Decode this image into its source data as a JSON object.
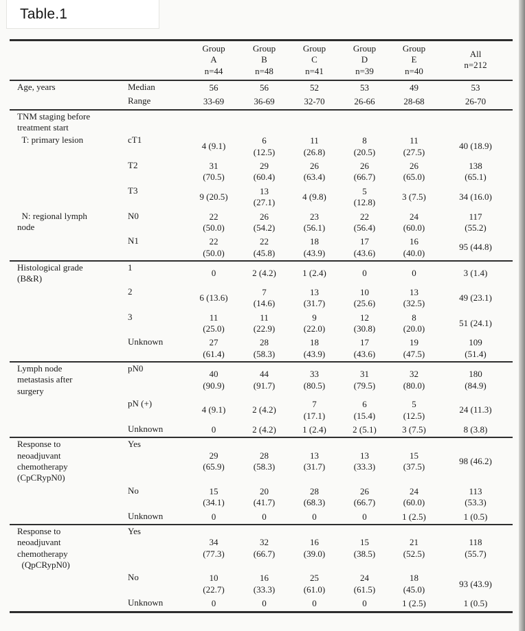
{
  "page": {
    "title": "Table.1"
  },
  "table": {
    "columns": [
      "Group\nA\nn=44",
      "Group\nB\nn=48",
      "Group\nC\nn=41",
      "Group\nD\nn=39",
      "Group\nE\nn=40",
      "All\nn=212"
    ],
    "sections": [
      {
        "rows": [
          {
            "category": "Age, years",
            "label": "Median",
            "values": [
              "56",
              "56",
              "52",
              "53",
              "49",
              "53"
            ]
          },
          {
            "category": "",
            "label": "Range",
            "values": [
              "33-69",
              "36-69",
              "32-70",
              "26-66",
              "28-68",
              "26-70"
            ]
          }
        ]
      },
      {
        "rows": [
          {
            "category": "TNM staging before\ntreatment start",
            "label": "",
            "values": [
              "",
              "",
              "",
              "",
              "",
              ""
            ]
          },
          {
            "category": "  T: primary lesion",
            "label": "cT1",
            "values": [
              "4 (9.1)",
              "6\n(12.5)",
              "11\n(26.8)",
              "8\n(20.5)",
              "11\n(27.5)",
              "40 (18.9)"
            ]
          },
          {
            "category": "",
            "label": "T2",
            "values": [
              "31\n(70.5)",
              "29\n(60.4)",
              "26\n(63.4)",
              "26\n(66.7)",
              "26\n(65.0)",
              "138\n(65.1)"
            ]
          },
          {
            "category": "",
            "label": "T3",
            "values": [
              "9 (20.5)",
              "13\n(27.1)",
              "4 (9.8)",
              "5\n(12.8)",
              "3 (7.5)",
              "34 (16.0)"
            ]
          },
          {
            "category": "  N: regional lymph\nnode",
            "label": "N0",
            "values": [
              "22\n(50.0)",
              "26\n(54.2)",
              "23\n(56.1)",
              "22\n(56.4)",
              "24\n(60.0)",
              "117\n(55.2)"
            ]
          },
          {
            "category": "",
            "label": "N1",
            "values": [
              "22\n(50.0)",
              "22\n(45.8)",
              "18\n(43.9)",
              "17\n(43.6)",
              "16\n(40.0)",
              "95 (44.8)"
            ]
          }
        ]
      },
      {
        "rows": [
          {
            "category": "Histological grade\n(B&R)",
            "label": "1",
            "values": [
              "0",
              "2 (4.2)",
              "1 (2.4)",
              "0",
              "0",
              "3 (1.4)"
            ]
          },
          {
            "category": "",
            "label": "2",
            "values": [
              "6 (13.6)",
              "7\n(14.6)",
              "13\n(31.7)",
              "10\n(25.6)",
              "13\n(32.5)",
              "49 (23.1)"
            ]
          },
          {
            "category": "",
            "label": "3",
            "values": [
              "11\n(25.0)",
              "11\n(22.9)",
              "9\n(22.0)",
              "12\n(30.8)",
              "8\n(20.0)",
              "51 (24.1)"
            ]
          },
          {
            "category": "",
            "label": "Unknown",
            "values": [
              "27\n(61.4)",
              "28\n(58.3)",
              "18\n(43.9)",
              "17\n(43.6)",
              "19\n(47.5)",
              "109\n(51.4)"
            ]
          }
        ]
      },
      {
        "rows": [
          {
            "category": "Lymph node\nmetastasis after\nsurgery",
            "label": "pN0",
            "values": [
              "40\n(90.9)",
              "44\n(91.7)",
              "33\n(80.5)",
              "31\n(79.5)",
              "32\n(80.0)",
              "180\n(84.9)"
            ]
          },
          {
            "category": "",
            "label": "pN (+)",
            "values": [
              "4 (9.1)",
              "2 (4.2)",
              "7\n(17.1)",
              "6\n(15.4)",
              "5\n(12.5)",
              "24 (11.3)"
            ]
          },
          {
            "category": "",
            "label": "Unknown",
            "values": [
              "0",
              "2 (4.2)",
              "1 (2.4)",
              "2 (5.1)",
              "3 (7.5)",
              "8 (3.8)"
            ]
          }
        ]
      },
      {
        "rows": [
          {
            "category": "Response to\nneoadjuvant\nchemotherapy\n(CpCRypN0)",
            "label": "Yes",
            "values": [
              "29\n(65.9)",
              "28\n(58.3)",
              "13\n(31.7)",
              "13\n(33.3)",
              "15\n(37.5)",
              "98 (46.2)"
            ]
          },
          {
            "category": "",
            "label": "No",
            "values": [
              "15\n(34.1)",
              "20\n(41.7)",
              "28\n(68.3)",
              "26\n(66.7)",
              "24\n(60.0)",
              "113\n(53.3)"
            ]
          },
          {
            "category": "",
            "label": "Unknown",
            "values": [
              "0",
              "0",
              "0",
              "0",
              "1 (2.5)",
              "1 (0.5)"
            ]
          }
        ]
      },
      {
        "rows": [
          {
            "category": "Response to\nneoadjuvant\nchemotherapy\n  (QpCRypN0)",
            "label": "Yes",
            "values": [
              "34\n(77.3)",
              "32\n(66.7)",
              "16\n(39.0)",
              "15\n(38.5)",
              "21\n(52.5)",
              "118\n(55.7)"
            ]
          },
          {
            "category": "",
            "label": "No",
            "values": [
              "10\n(22.7)",
              "16\n(33.3)",
              "25\n(61.0)",
              "24\n(61.5)",
              "18\n(45.0)",
              "93 (43.9)"
            ]
          },
          {
            "category": "",
            "label": "Unknown",
            "values": [
              "0",
              "0",
              "0",
              "0",
              "1 (2.5)",
              "1 (0.5)"
            ]
          }
        ]
      }
    ]
  }
}
